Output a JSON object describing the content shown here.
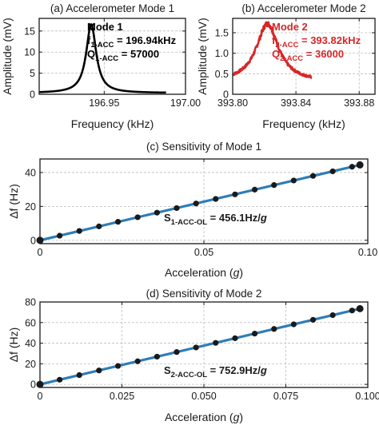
{
  "chart_data": [
    {
      "id": "a",
      "type": "line",
      "title": "(a) Accelerometer Mode 1",
      "xlabel": "Frequency (kHz)",
      "ylabel": "Amplitude (mV)",
      "xlim": [
        196.91,
        197.0
      ],
      "ylim": [
        0,
        18
      ],
      "xticks": [
        196.95,
        197.0
      ],
      "xtick_labels": [
        "196.95",
        "197.00"
      ],
      "yticks": [
        0,
        5,
        10,
        15
      ],
      "grid": true,
      "color": "#000000",
      "resonance": {
        "f0": 196.942,
        "peak": 16.6,
        "base": 0.3,
        "halfwidth": 0.0037,
        "x_range": [
          196.91,
          196.988
        ]
      },
      "annotation": [
        {
          "main": "Mode 1",
          "sub": "",
          "tail": ""
        },
        {
          "main": "f",
          "sub": "1-ACC",
          "tail": " = 196.94kHz"
        },
        {
          "main": "Q",
          "sub": "1-ACC",
          "tail": " = 57000"
        }
      ],
      "annotation_color": "#000000"
    },
    {
      "id": "b",
      "type": "line",
      "title": "(b) Accelerometer Mode 2",
      "xlabel": "Frequency (kHz)",
      "ylabel": "Amplitude (mV)",
      "xlim": [
        393.8,
        393.89
      ],
      "ylim": [
        0,
        1.85
      ],
      "xticks": [
        393.8,
        393.84,
        393.88
      ],
      "xtick_labels": [
        "393.80",
        "393.84",
        "393.88"
      ],
      "yticks": [
        0,
        0.5,
        1.0,
        1.5
      ],
      "ytick_labels": [
        "0",
        "0.5",
        "1.0",
        "1.5"
      ],
      "grid": true,
      "color": "#d62728",
      "resonance": {
        "f0": 393.822,
        "peak": 1.72,
        "base": 0.3,
        "halfwidth": 0.0085,
        "x_range": [
          393.8,
          393.85
        ],
        "noisy": true
      },
      "annotation": [
        {
          "main": "Mode 2",
          "sub": "",
          "tail": ""
        },
        {
          "main": "f",
          "sub": "2-ACC",
          "tail": " = 393.82kHz"
        },
        {
          "main": "Q",
          "sub": "2-ACC",
          "tail": " = 36000"
        }
      ],
      "annotation_color": "#d62728"
    },
    {
      "id": "c",
      "type": "scatter",
      "title": "(c) Sensitivity of Mode 1",
      "xlabel": "Acceleration (",
      "xlabel_var": "g",
      "xlabel_tail": ")",
      "ylabel": "Δf (Hz)",
      "xlim": [
        0,
        0.1
      ],
      "ylim": [
        -2,
        48
      ],
      "xticks": [
        0,
        0.05,
        0.1
      ],
      "xtick_labels": [
        "0",
        "0.05",
        "0.10"
      ],
      "yticks": [
        0,
        20,
        40
      ],
      "grid": true,
      "x": [
        0,
        0.006,
        0.012,
        0.018,
        0.0238,
        0.0298,
        0.0357,
        0.0417,
        0.0476,
        0.0536,
        0.0595,
        0.0655,
        0.0714,
        0.0774,
        0.0833,
        0.0893,
        0.0952,
        0.0976
      ],
      "y": [
        0,
        2.7,
        5.5,
        8.2,
        10.9,
        13.6,
        16.3,
        19.0,
        21.7,
        24.4,
        27.1,
        29.9,
        32.6,
        35.3,
        38.0,
        40.7,
        43.4,
        44.5
      ],
      "fit_slope": 456.1,
      "marker_color": "#1a1a1a",
      "fit_color": "#2f7db8",
      "annotation": {
        "main": "S",
        "sub": "1-ACC-OL",
        "tail": " = 456.1Hz/",
        "var": "g"
      }
    },
    {
      "id": "d",
      "type": "scatter",
      "title": "(d) Sensitivity of Mode 2",
      "xlabel": "Acceleration (",
      "xlabel_var": "g",
      "xlabel_tail": ")",
      "ylabel": "Δf (Hz)",
      "xlim": [
        0,
        0.1
      ],
      "ylim": [
        -3,
        80
      ],
      "xticks": [
        0,
        0.025,
        0.05,
        0.075,
        0.1
      ],
      "xtick_labels": [
        "0",
        "0.025",
        "0.050",
        "0.075",
        "0.100"
      ],
      "yticks": [
        0,
        20,
        40,
        60,
        80
      ],
      "grid": true,
      "x": [
        0,
        0.006,
        0.012,
        0.018,
        0.0238,
        0.0298,
        0.0357,
        0.0417,
        0.0476,
        0.0536,
        0.0595,
        0.0655,
        0.0714,
        0.0774,
        0.0833,
        0.0893,
        0.0952,
        0.0976
      ],
      "y": [
        0,
        4.5,
        9.0,
        13.5,
        17.9,
        22.4,
        26.9,
        31.4,
        35.8,
        40.3,
        44.8,
        49.3,
        53.8,
        58.3,
        62.7,
        67.2,
        71.7,
        73.5
      ],
      "fit_slope": 752.9,
      "marker_color": "#1a1a1a",
      "fit_color": "#2f7db8",
      "annotation": {
        "main": "S",
        "sub": "2-ACC-OL",
        "tail": " = 752.9Hz/",
        "var": "g"
      }
    }
  ]
}
